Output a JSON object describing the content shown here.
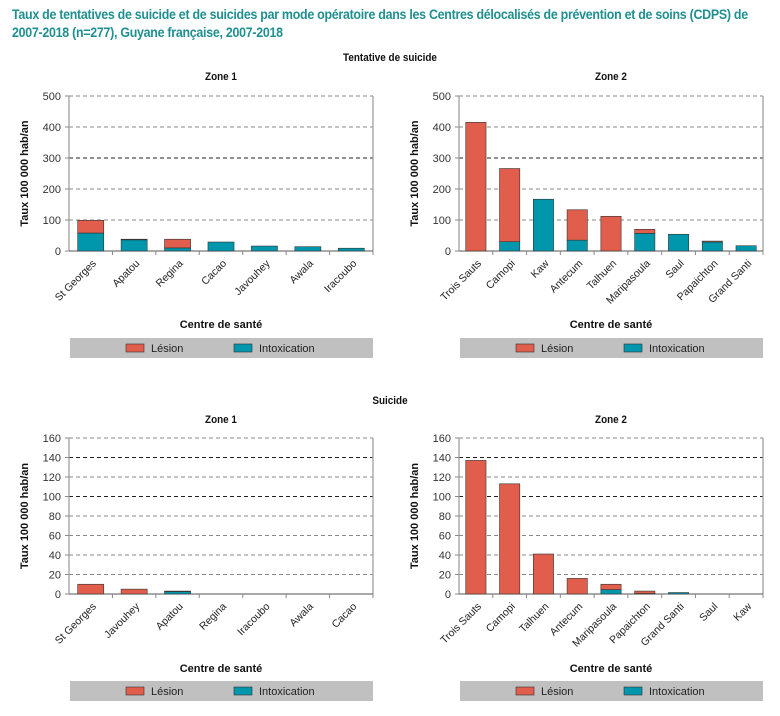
{
  "title": "Taux de tentatives de suicide et de suicides par mode opératoire dans les Centres délocalisés de prévention et de soins (CDPS) de 2007-2018 (n=277), Guyane française, 2007-2018",
  "sections": [
    "Tentative de suicide",
    "Suicide"
  ],
  "colors": {
    "lesion": "#e05e4b",
    "intoxication": "#0097ad",
    "legend_bg": "#c0c0c0",
    "title": "#1f8f8f"
  },
  "chart_data": [
    {
      "type": "bar",
      "stacked": true,
      "section": "Tentative de suicide",
      "title": "Zone 1",
      "xlabel": "Centre de santé",
      "ylabel": "Taux 100 000 hab/an",
      "ylim": [
        0,
        500
      ],
      "yticks": [
        0,
        100,
        200,
        300,
        400,
        500
      ],
      "categories": [
        "St Georges",
        "Apatou",
        "Regina",
        "Cacao",
        "Javouhey",
        "Awala",
        "Iracoubo"
      ],
      "series": [
        {
          "name": "Intoxication",
          "values": [
            58,
            36,
            10,
            29,
            16,
            14,
            9
          ]
        },
        {
          "name": "Lésion",
          "values": [
            41,
            2,
            28,
            0,
            0,
            0,
            0
          ]
        }
      ],
      "legend": [
        "Lésion",
        "Intoxication"
      ],
      "legend_position": "bottom",
      "grid": true
    },
    {
      "type": "bar",
      "stacked": true,
      "section": "Tentative de suicide",
      "title": "Zone 2",
      "xlabel": "Centre de santé",
      "ylabel": "Taux 100 000 hab/an",
      "ylim": [
        0,
        500
      ],
      "yticks": [
        0,
        100,
        200,
        300,
        400,
        500
      ],
      "categories": [
        "Trois Sauts",
        "Camopi",
        "Kaw",
        "Antecum",
        "Talhuen",
        "Maripasoula",
        "Saul",
        "Papaichton",
        "Grand Santi"
      ],
      "series": [
        {
          "name": "Intoxication",
          "values": [
            0,
            30,
            167,
            35,
            0,
            57,
            54,
            29,
            17
          ]
        },
        {
          "name": "Lésion",
          "values": [
            415,
            236,
            0,
            98,
            112,
            13,
            0,
            3,
            0
          ]
        }
      ],
      "legend": [
        "Lésion",
        "Intoxication"
      ],
      "legend_position": "bottom",
      "grid": true
    },
    {
      "type": "bar",
      "stacked": true,
      "section": "Suicide",
      "title": "Zone 1",
      "xlabel": "Centre de santé",
      "ylabel": "Taux 100 000 hab/an",
      "ylim": [
        0,
        160
      ],
      "yticks": [
        0,
        20,
        40,
        60,
        80,
        100,
        120,
        140,
        160
      ],
      "categories": [
        "St Georges",
        "Javouhey",
        "Apatou",
        "Regina",
        "Iracoubo",
        "Awala",
        "Cacao"
      ],
      "series": [
        {
          "name": "Intoxication",
          "values": [
            0,
            0,
            2.5,
            0,
            0,
            0,
            0
          ]
        },
        {
          "name": "Lésion",
          "values": [
            10,
            5,
            0.5,
            0,
            0,
            0,
            0
          ]
        }
      ],
      "legend": [
        "Lésion",
        "Intoxication"
      ],
      "legend_position": "bottom",
      "grid": true
    },
    {
      "type": "bar",
      "stacked": true,
      "section": "Suicide",
      "title": "Zone 2",
      "xlabel": "Centre de santé",
      "ylabel": "Taux 100 000 hab/an",
      "ylim": [
        0,
        160
      ],
      "yticks": [
        0,
        20,
        40,
        60,
        80,
        100,
        120,
        140,
        160
      ],
      "categories": [
        "Trois Sauts",
        "Camopi",
        "Talhuen",
        "Antecum",
        "Maripasoula",
        "Papaichton",
        "Grand Santi",
        "Saul",
        "Kaw"
      ],
      "series": [
        {
          "name": "Intoxication",
          "values": [
            0,
            0,
            0,
            0,
            4.5,
            0.5,
            1.5,
            0,
            0
          ]
        },
        {
          "name": "Lésion",
          "values": [
            137,
            113,
            41,
            16,
            5.5,
            2.5,
            0,
            0,
            0
          ]
        }
      ],
      "legend": [
        "Lésion",
        "Intoxication"
      ],
      "legend_position": "bottom",
      "grid": true
    }
  ]
}
